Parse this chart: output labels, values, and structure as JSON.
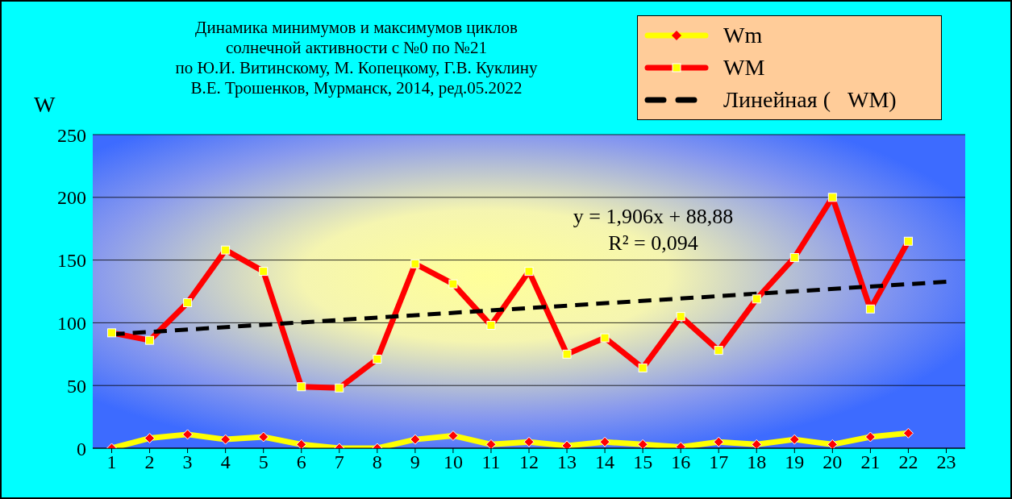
{
  "chart_data": {
    "type": "line",
    "title": "Динамика минимумов и максимумов циклов\nсолнечной активности с №0 по №21\nпо Ю.И. Витинскому, М. Копецкому, Г.В. Куклину\nВ.Е. Трошенков, Мурманск, 2014, ред.05.2022",
    "ylabel": "W",
    "x": [
      1,
      2,
      3,
      4,
      5,
      6,
      7,
      8,
      9,
      10,
      11,
      12,
      13,
      14,
      15,
      16,
      17,
      18,
      19,
      20,
      21,
      22
    ],
    "xlim": [
      0.5,
      23.5
    ],
    "xticks": [
      1,
      2,
      3,
      4,
      5,
      6,
      7,
      8,
      9,
      10,
      11,
      12,
      13,
      14,
      15,
      16,
      17,
      18,
      19,
      20,
      21,
      22,
      23
    ],
    "ylim": [
      0,
      250
    ],
    "yticks": [
      0,
      50,
      100,
      150,
      200,
      250
    ],
    "grid": "y",
    "legend": "top right",
    "series": [
      {
        "name": "Wm",
        "color": "#ffff00",
        "marker": "diamond",
        "values": [
          0,
          8,
          11,
          7,
          9,
          3,
          0,
          0,
          7,
          10,
          3,
          5,
          2,
          5,
          3,
          1,
          5,
          3,
          7,
          3,
          9,
          12
        ]
      },
      {
        "name": "WM",
        "color": "#ff0000",
        "marker": "square",
        "values": [
          92,
          86,
          116,
          158,
          141,
          49,
          48,
          71,
          147,
          131,
          98,
          141,
          75,
          88,
          64,
          105,
          78,
          119,
          152,
          200,
          111,
          165
        ]
      },
      {
        "name": "Линейная (   WM)",
        "color": "#000000",
        "marker": "none",
        "line_style": "dashed",
        "x": [
          1,
          23
        ],
        "values": [
          90.8,
          132.7
        ]
      }
    ],
    "annotations": [
      "y = 1,906x + 88,88",
      "R² = 0,094"
    ]
  }
}
